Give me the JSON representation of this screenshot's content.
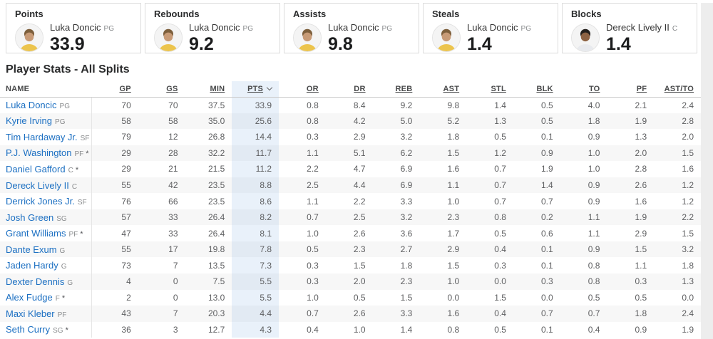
{
  "colors": {
    "link_blue": "#1b6fc2",
    "pts_highlight": "#e9f1fa",
    "row_stripe": "#f7f7f7"
  },
  "leader_cards": [
    {
      "category": "Points",
      "player": "Luka Doncic",
      "position": "PG",
      "value": "33.9",
      "avatar": "luka-doncic-photo"
    },
    {
      "category": "Rebounds",
      "player": "Luka Doncic",
      "position": "PG",
      "value": "9.2",
      "avatar": "luka-doncic-photo"
    },
    {
      "category": "Assists",
      "player": "Luka Doncic",
      "position": "PG",
      "value": "9.8",
      "avatar": "luka-doncic-photo"
    },
    {
      "category": "Steals",
      "player": "Luka Doncic",
      "position": "PG",
      "value": "1.4",
      "avatar": "luka-doncic-photo"
    },
    {
      "category": "Blocks",
      "player": "Dereck Lively II",
      "position": "C",
      "value": "1.4",
      "avatar": "dereck-lively-photo"
    }
  ],
  "section_title": "Player Stats - All Splits",
  "table": {
    "sort_column": "PTS",
    "sort_direction": "desc",
    "columns": [
      "NAME",
      "GP",
      "GS",
      "MIN",
      "PTS",
      "OR",
      "DR",
      "REB",
      "AST",
      "STL",
      "BLK",
      "TO",
      "PF",
      "AST/TO"
    ],
    "rows": [
      {
        "name": "Luka Doncic",
        "position": "PG",
        "note": "",
        "stats": [
          "70",
          "70",
          "37.5",
          "33.9",
          "0.8",
          "8.4",
          "9.2",
          "9.8",
          "1.4",
          "0.5",
          "4.0",
          "2.1",
          "2.4"
        ]
      },
      {
        "name": "Kyrie Irving",
        "position": "PG",
        "note": "",
        "stats": [
          "58",
          "58",
          "35.0",
          "25.6",
          "0.8",
          "4.2",
          "5.0",
          "5.2",
          "1.3",
          "0.5",
          "1.8",
          "1.9",
          "2.8"
        ]
      },
      {
        "name": "Tim Hardaway Jr.",
        "position": "SF",
        "note": "",
        "stats": [
          "79",
          "12",
          "26.8",
          "14.4",
          "0.3",
          "2.9",
          "3.2",
          "1.8",
          "0.5",
          "0.1",
          "0.9",
          "1.3",
          "2.0"
        ]
      },
      {
        "name": "P.J. Washington",
        "position": "PF",
        "note": "*",
        "stats": [
          "29",
          "28",
          "32.2",
          "11.7",
          "1.1",
          "5.1",
          "6.2",
          "1.5",
          "1.2",
          "0.9",
          "1.0",
          "2.0",
          "1.5"
        ]
      },
      {
        "name": "Daniel Gafford",
        "position": "C",
        "note": "*",
        "stats": [
          "29",
          "21",
          "21.5",
          "11.2",
          "2.2",
          "4.7",
          "6.9",
          "1.6",
          "0.7",
          "1.9",
          "1.0",
          "2.8",
          "1.6"
        ]
      },
      {
        "name": "Dereck Lively II",
        "position": "C",
        "note": "",
        "stats": [
          "55",
          "42",
          "23.5",
          "8.8",
          "2.5",
          "4.4",
          "6.9",
          "1.1",
          "0.7",
          "1.4",
          "0.9",
          "2.6",
          "1.2"
        ]
      },
      {
        "name": "Derrick Jones Jr.",
        "position": "SF",
        "note": "",
        "stats": [
          "76",
          "66",
          "23.5",
          "8.6",
          "1.1",
          "2.2",
          "3.3",
          "1.0",
          "0.7",
          "0.7",
          "0.9",
          "1.6",
          "1.2"
        ]
      },
      {
        "name": "Josh Green",
        "position": "SG",
        "note": "",
        "stats": [
          "57",
          "33",
          "26.4",
          "8.2",
          "0.7",
          "2.5",
          "3.2",
          "2.3",
          "0.8",
          "0.2",
          "1.1",
          "1.9",
          "2.2"
        ]
      },
      {
        "name": "Grant Williams",
        "position": "PF",
        "note": "*",
        "stats": [
          "47",
          "33",
          "26.4",
          "8.1",
          "1.0",
          "2.6",
          "3.6",
          "1.7",
          "0.5",
          "0.6",
          "1.1",
          "2.9",
          "1.5"
        ]
      },
      {
        "name": "Dante Exum",
        "position": "G",
        "note": "",
        "stats": [
          "55",
          "17",
          "19.8",
          "7.8",
          "0.5",
          "2.3",
          "2.7",
          "2.9",
          "0.4",
          "0.1",
          "0.9",
          "1.5",
          "3.2"
        ]
      },
      {
        "name": "Jaden Hardy",
        "position": "G",
        "note": "",
        "stats": [
          "73",
          "7",
          "13.5",
          "7.3",
          "0.3",
          "1.5",
          "1.8",
          "1.5",
          "0.3",
          "0.1",
          "0.8",
          "1.1",
          "1.8"
        ]
      },
      {
        "name": "Dexter Dennis",
        "position": "G",
        "note": "",
        "stats": [
          "4",
          "0",
          "7.5",
          "5.5",
          "0.3",
          "2.0",
          "2.3",
          "1.0",
          "0.0",
          "0.3",
          "0.8",
          "0.3",
          "1.3"
        ]
      },
      {
        "name": "Alex Fudge",
        "position": "F",
        "note": "*",
        "stats": [
          "2",
          "0",
          "13.0",
          "5.5",
          "1.0",
          "0.5",
          "1.5",
          "0.0",
          "1.5",
          "0.0",
          "0.5",
          "0.5",
          "0.0"
        ]
      },
      {
        "name": "Maxi Kleber",
        "position": "PF",
        "note": "",
        "stats": [
          "43",
          "7",
          "20.3",
          "4.4",
          "0.7",
          "2.6",
          "3.3",
          "1.6",
          "0.4",
          "0.7",
          "0.7",
          "1.8",
          "2.4"
        ]
      },
      {
        "name": "Seth Curry",
        "position": "SG",
        "note": "*",
        "stats": [
          "36",
          "3",
          "12.7",
          "4.3",
          "0.4",
          "1.0",
          "1.4",
          "0.8",
          "0.5",
          "0.1",
          "0.4",
          "0.9",
          "1.9"
        ]
      }
    ]
  }
}
